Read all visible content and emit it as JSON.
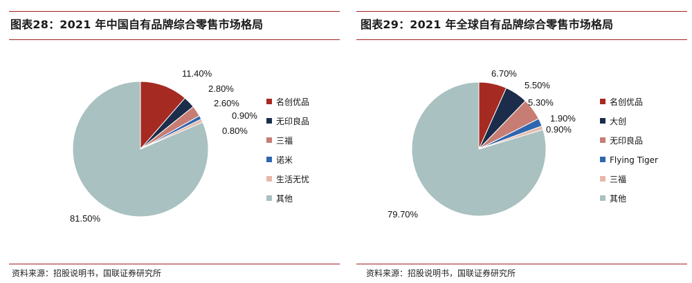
{
  "panels": [
    {
      "title": "图表28：2021 年中国自有品牌综合零售市场格局",
      "source": "资料来源：招股说明书，国联证券研究所"
    },
    {
      "title": "图表29：2021 年全球自有品牌综合零售市场格局",
      "source": "资料来源：招股说明书，国联证券研究所"
    }
  ],
  "chart_data": [
    {
      "type": "pie",
      "title": "2021 年中国自有品牌综合零售市场格局",
      "legend_position": "right",
      "labels": [
        "名创优品",
        "无印良品",
        "三福",
        "诺米",
        "生活无忧",
        "其他"
      ],
      "values": [
        11.4,
        2.8,
        2.6,
        0.9,
        0.8,
        81.5
      ],
      "value_labels": [
        "11.40%",
        "2.80%",
        "2.60%",
        "0.90%",
        "0.80%",
        "81.50%"
      ],
      "colors": [
        "#a52a22",
        "#1b2d4a",
        "#c77d74",
        "#2f66b0",
        "#e6b8aa",
        "#a9c1c0"
      ]
    },
    {
      "type": "pie",
      "title": "2021 年全球自有品牌综合零售市场格局",
      "legend_position": "right",
      "labels": [
        "名创优品",
        "大创",
        "无印良品",
        "Flying Tiger",
        "三福",
        "其他"
      ],
      "values": [
        6.7,
        5.5,
        5.3,
        1.9,
        0.9,
        79.7
      ],
      "value_labels": [
        "6.70%",
        "5.50%",
        "5.30%",
        "1.90%",
        "0.90%",
        "79.70%"
      ],
      "colors": [
        "#a52a22",
        "#1b2d4a",
        "#c77d74",
        "#2f66b0",
        "#e6b8aa",
        "#a9c1c0"
      ]
    }
  ]
}
